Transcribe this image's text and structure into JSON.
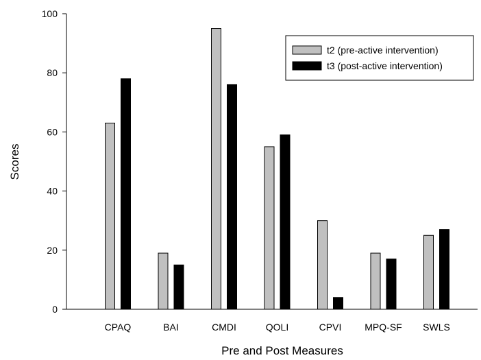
{
  "chart_data": {
    "type": "bar",
    "title": "",
    "xlabel": "Pre and Post Measures",
    "ylabel": "Scores",
    "ylim": [
      0,
      100
    ],
    "yticks": [
      0,
      20,
      40,
      60,
      80,
      100
    ],
    "categories": [
      "CPAQ",
      "BAI",
      "CMDI",
      "QOLI",
      "CPVI",
      "MPQ-SF",
      "SWLS"
    ],
    "series": [
      {
        "name": "t2 (pre-active intervention)",
        "color": "#c0c0c0",
        "values": [
          63,
          19,
          95,
          55,
          30,
          19,
          25
        ]
      },
      {
        "name": "t3 (post-active intervention)",
        "color": "#000000",
        "values": [
          78,
          15,
          76,
          59,
          4,
          17,
          27
        ]
      }
    ],
    "grid": false,
    "legend_position": "top-right"
  }
}
